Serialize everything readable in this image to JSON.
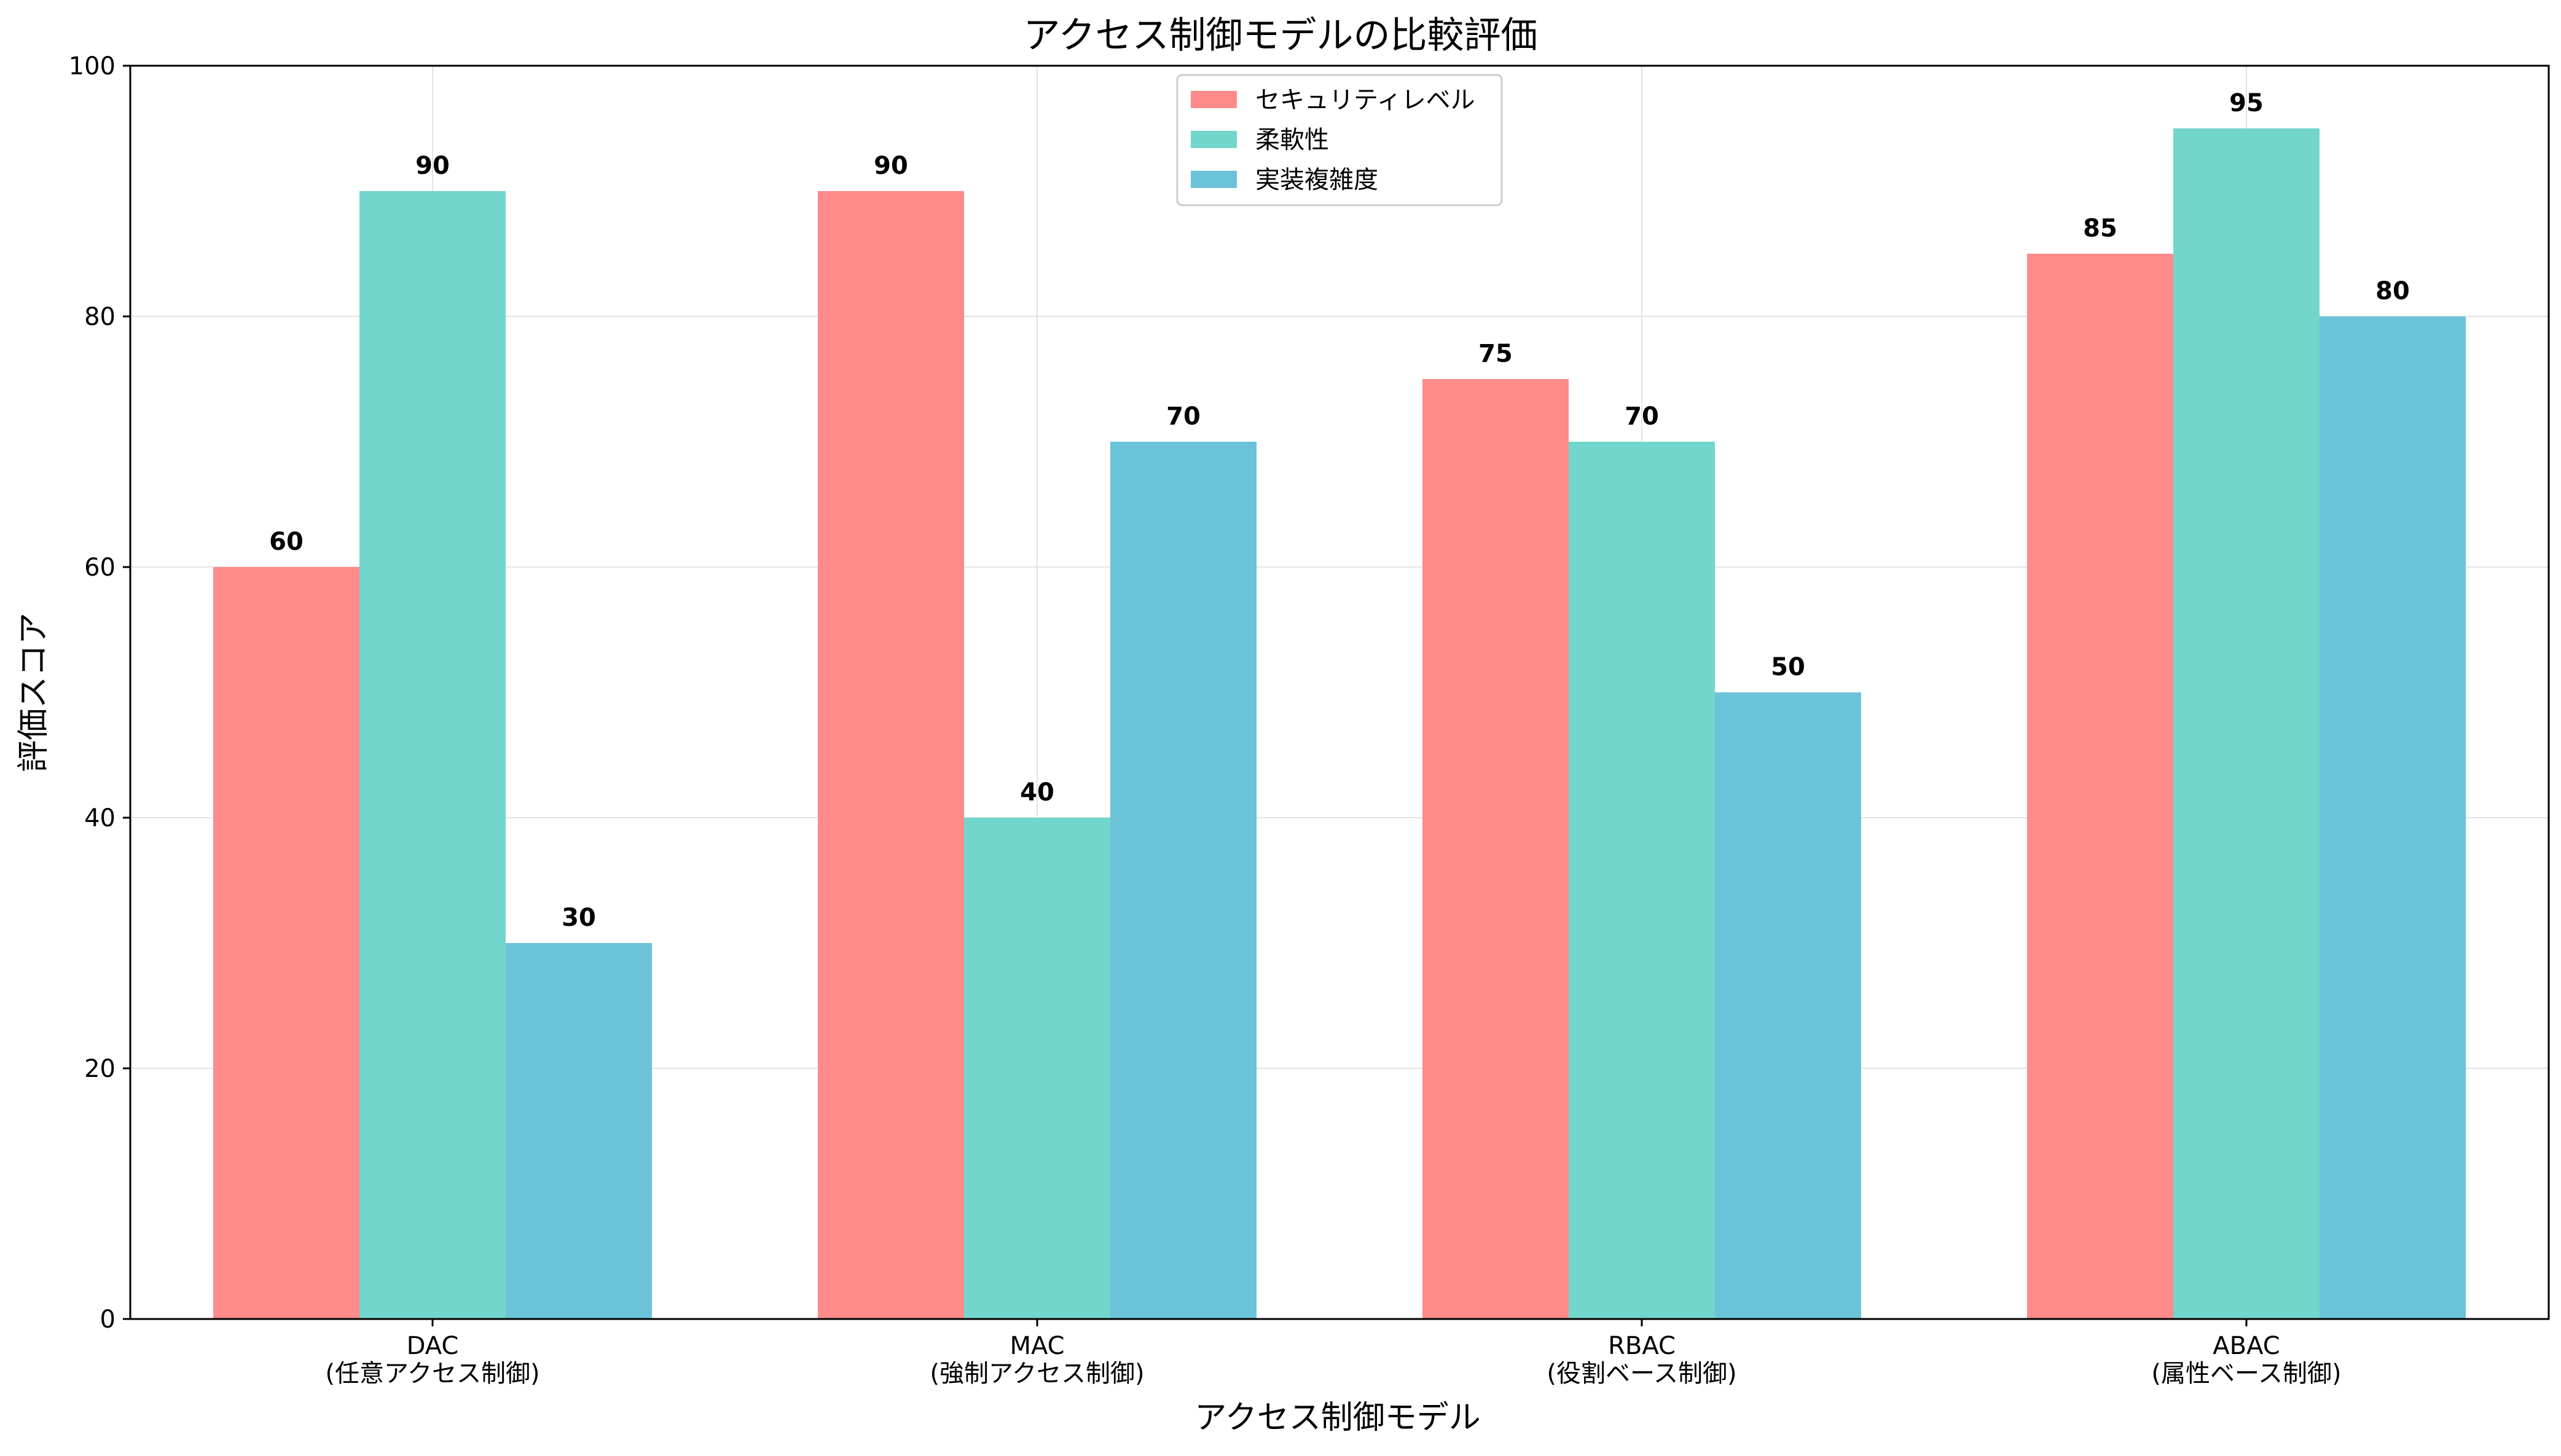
{
  "chart_data": {
    "type": "bar",
    "title": "アクセス制御モデルの比較評価",
    "xlabel": "アクセス制御モデル",
    "ylabel": "評価スコア",
    "ylim": [
      0,
      100
    ],
    "yticks": [
      0,
      20,
      40,
      60,
      80,
      100
    ],
    "grid": true,
    "legend_position": "top-center",
    "categories": [
      {
        "name": "DAC",
        "sub": "(任意アクセス制御)"
      },
      {
        "name": "MAC",
        "sub": "(強制アクセス制御)"
      },
      {
        "name": "RBAC",
        "sub": "(役割ベース制御)"
      },
      {
        "name": "ABAC",
        "sub": "(属性ベース制御)"
      }
    ],
    "series": [
      {
        "name": "セキュリティレベル",
        "color": "#FF8A8A",
        "values": [
          60,
          90,
          75,
          85
        ]
      },
      {
        "name": "柔軟性",
        "color": "#72D6CD",
        "values": [
          90,
          40,
          70,
          95
        ]
      },
      {
        "name": "実装複雑度",
        "color": "#6BC3D9",
        "values": [
          30,
          70,
          50,
          80
        ]
      }
    ]
  }
}
